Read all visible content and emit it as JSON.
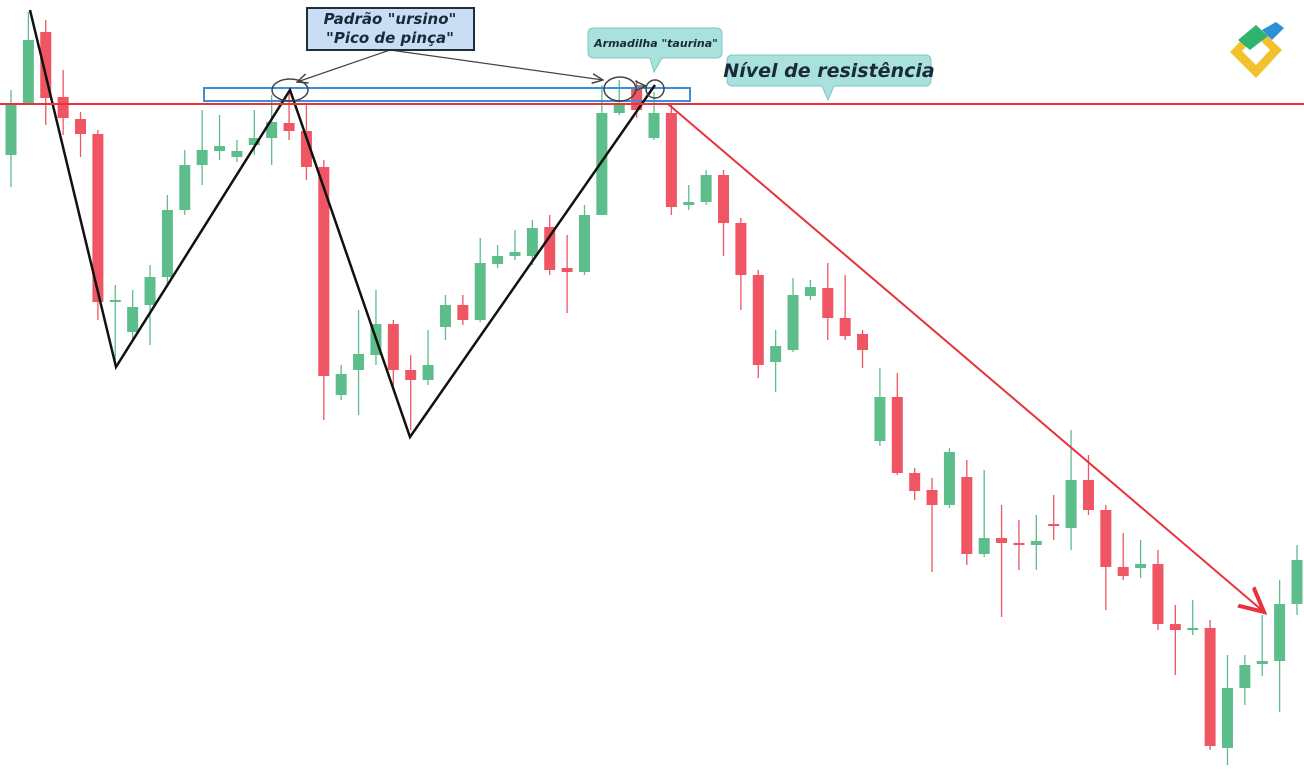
{
  "chart_data": {
    "type": "candlestick",
    "open": [
      614,
      666,
      737,
      672,
      650,
      635,
      467,
      437,
      464,
      492,
      559,
      604,
      618,
      612,
      624,
      631,
      646,
      638,
      602,
      374,
      399,
      414,
      445,
      399,
      389,
      442,
      464,
      449,
      505,
      513,
      513,
      542,
      501,
      497,
      554,
      656,
      682,
      631,
      656,
      564,
      567,
      594,
      546,
      494,
      407,
      419,
      473,
      481,
      451,
      435,
      328,
      372,
      296,
      279,
      264,
      292,
      215,
      231,
      226,
      224,
      245,
      241,
      289,
      259,
      202,
      201,
      205,
      145,
      139,
      141,
      21,
      81,
      105,
      108,
      165
    ],
    "high": [
      679,
      757,
      749,
      699,
      657,
      639,
      484,
      479,
      504,
      574,
      619,
      659,
      654,
      629,
      659,
      674,
      677,
      664,
      609,
      404,
      459,
      479,
      449,
      414,
      439,
      474,
      474,
      531,
      524,
      539,
      549,
      554,
      534,
      564,
      684,
      689,
      689,
      677,
      666,
      584,
      599,
      599,
      551,
      499,
      439,
      491,
      489,
      506,
      494,
      439,
      401,
      396,
      301,
      291,
      321,
      309,
      299,
      264,
      249,
      254,
      274,
      339,
      314,
      264,
      236,
      229,
      219,
      164,
      169,
      149,
      114,
      114,
      154,
      189,
      224
    ],
    "low": [
      582,
      664,
      644,
      634,
      612,
      449,
      409,
      429,
      424,
      484,
      554,
      584,
      609,
      607,
      614,
      604,
      629,
      589,
      349,
      369,
      354,
      404,
      379,
      339,
      384,
      429,
      444,
      447,
      501,
      509,
      504,
      494,
      456,
      494,
      554,
      654,
      651,
      629,
      554,
      559,
      564,
      513,
      459,
      391,
      377,
      417,
      469,
      429,
      429,
      401,
      323,
      294,
      269,
      197,
      261,
      204,
      212,
      152,
      199,
      199,
      229,
      219,
      254,
      159,
      189,
      191,
      139,
      94,
      134,
      19,
      4,
      64,
      93,
      57,
      154
    ],
    "close": [
      666,
      729,
      671,
      651,
      635,
      467,
      469,
      462,
      492,
      559,
      604,
      619,
      623,
      618,
      631,
      647,
      638,
      602,
      393,
      395,
      415,
      445,
      399,
      389,
      404,
      464,
      449,
      506,
      513,
      517,
      541,
      499,
      497,
      554,
      656,
      664,
      659,
      656,
      562,
      567,
      594,
      546,
      494,
      404,
      423,
      474,
      482,
      451,
      433,
      419,
      372,
      296,
      278,
      264,
      317,
      215,
      231,
      226,
      224,
      228,
      243,
      289,
      259,
      202,
      193,
      205,
      145,
      139,
      141,
      23,
      81,
      104,
      108,
      165,
      209
    ],
    "up_color": "#5dbd8b",
    "down_color": "#ef5563",
    "ylim": [
      0,
      769
    ],
    "resistance_level": 665,
    "resistance_color": "#e8323c",
    "annotations": {
      "pattern_line1": "Padrão \"ursino\"",
      "pattern_line2": "\"Pico de pinça\"",
      "trap": "Armadilha \"taurina\"",
      "resistance": "Nível de resistência"
    }
  }
}
